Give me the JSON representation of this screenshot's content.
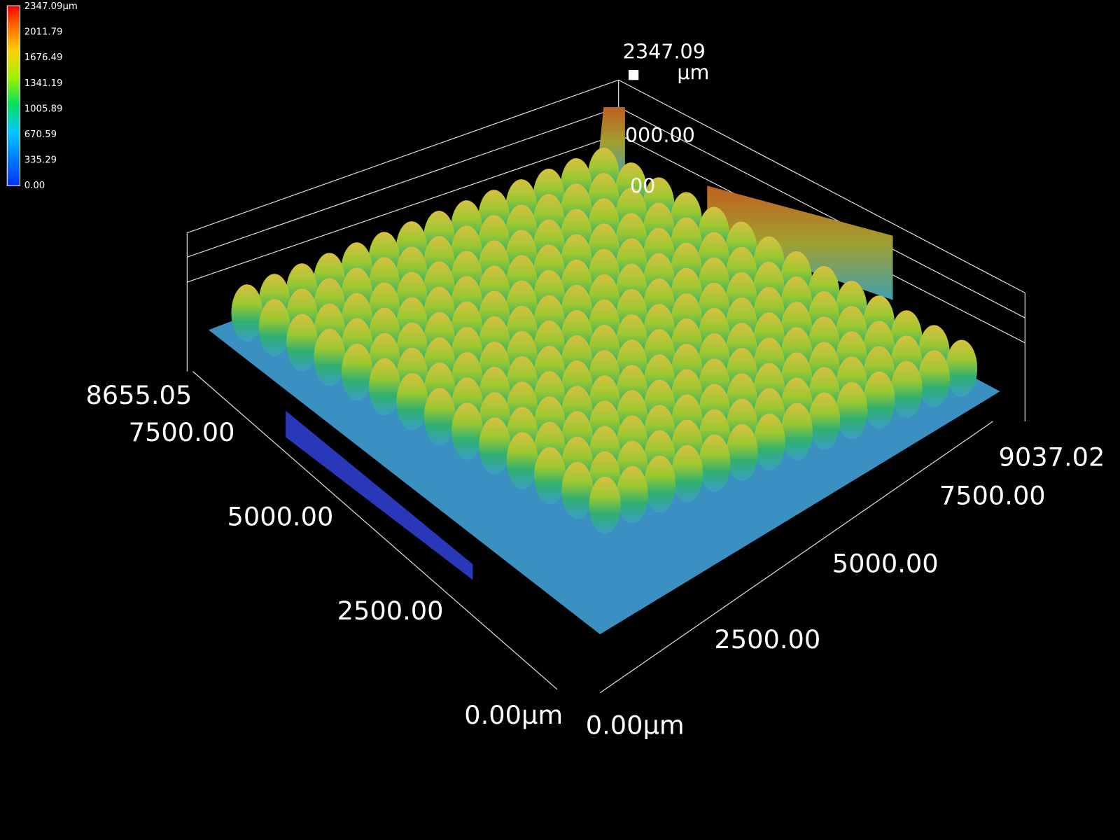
{
  "colorbar": {
    "labels": [
      "2347.09µm",
      "2011.79",
      "1676.49",
      "1341.19",
      "1005.89",
      "670.59",
      "335.29",
      "0.00"
    ]
  },
  "z_axis": {
    "max": "2347.09",
    "unit": "µm",
    "ticks": [
      "000.00",
      "00"
    ]
  },
  "y_axis": {
    "labels": [
      "8655.05",
      "7500.00",
      "5000.00",
      "2500.00",
      "0.00µm"
    ]
  },
  "x_axis": {
    "labels": [
      "0.00µm",
      "2500.00",
      "5000.00",
      "7500.00",
      "9037.02"
    ]
  }
}
